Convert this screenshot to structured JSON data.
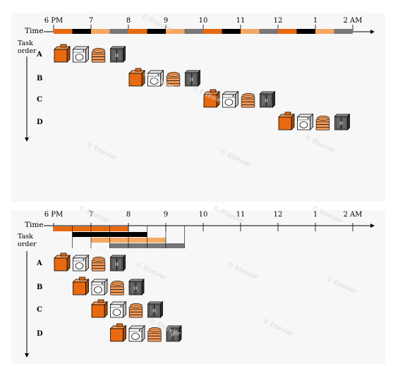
{
  "colors": {
    "washer": "#e86a10",
    "dryer": "#000000",
    "folder": "#f4a862",
    "storer": "#777777",
    "panel_bg": "#f7f7f7"
  },
  "panels": [
    {
      "id": "sequential",
      "axis_label": "Time",
      "order_label_line1": "Task",
      "order_label_line2": "order",
      "ticks": [
        "6 PM",
        "7",
        "8",
        "9",
        "10",
        "11",
        "12",
        "1",
        "2 AM"
      ],
      "tasks": [
        {
          "label": "A",
          "start": 0
        },
        {
          "label": "B",
          "start": 4
        },
        {
          "label": "C",
          "start": 8
        },
        {
          "label": "D",
          "start": 12
        }
      ]
    },
    {
      "id": "pipelined",
      "axis_label": "Time",
      "order_label_line1": "Task",
      "order_label_line2": "order",
      "ticks": [
        "6 PM",
        "7",
        "8",
        "9",
        "10",
        "11",
        "12",
        "1",
        "2 AM"
      ],
      "tasks": [
        {
          "label": "A",
          "start": 0
        },
        {
          "label": "B",
          "start": 1
        },
        {
          "label": "C",
          "start": 2
        },
        {
          "label": "D",
          "start": 3
        }
      ]
    }
  ],
  "stage_icons": [
    "washer-icon",
    "dryer-icon",
    "folding-stack-icon",
    "closet-icon"
  ],
  "watermark": "© Elsevier"
}
